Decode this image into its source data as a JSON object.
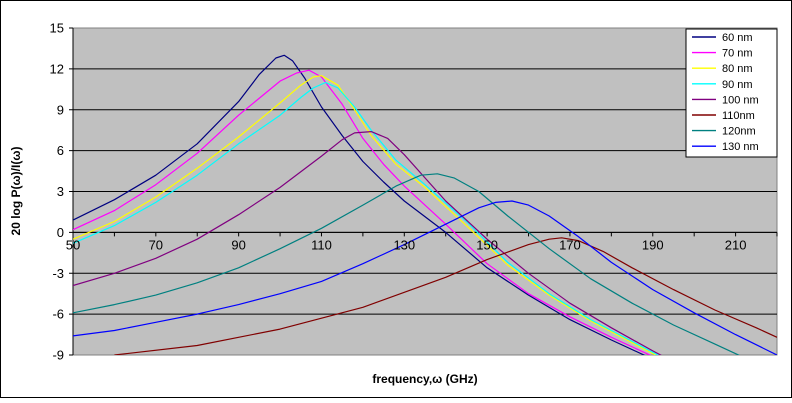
{
  "chart_data": {
    "type": "line",
    "title": "",
    "xlabel": "frequency,ω (GHz)",
    "ylabel": "20 log P(ω)/I(ω)",
    "xlim": [
      50,
      220
    ],
    "ylim": [
      -9,
      15
    ],
    "x_ticks": [
      "50",
      "70",
      "90",
      "110",
      "130",
      "150",
      "170",
      "190",
      "210"
    ],
    "y_ticks": [
      "15",
      "12",
      "9",
      "6",
      "3",
      "0",
      "-3",
      "-6",
      "-9"
    ],
    "grid": "horizontal",
    "plot_background": "#c0c0c0",
    "legend_position": "top-right",
    "series": [
      {
        "name": "60 nm",
        "color": "#000080",
        "x": [
          50,
          60,
          70,
          80,
          90,
          95,
          99,
          101,
          103,
          106,
          110,
          115,
          120,
          125,
          130,
          140,
          150,
          160,
          170,
          180,
          190,
          194
        ],
        "y": [
          0.9,
          2.4,
          4.2,
          6.5,
          9.6,
          11.6,
          12.8,
          13.0,
          12.6,
          11.3,
          9.2,
          7.1,
          5.2,
          3.7,
          2.3,
          0.0,
          -2.6,
          -4.6,
          -6.4,
          -7.9,
          -9.3,
          -9.8
        ]
      },
      {
        "name": "70 nm",
        "color": "#ff00ff",
        "x": [
          50,
          60,
          70,
          80,
          90,
          100,
          104,
          107,
          110,
          115,
          120,
          125,
          130,
          140,
          150,
          160,
          170,
          180,
          190,
          195
        ],
        "y": [
          0.2,
          1.6,
          3.5,
          5.8,
          8.6,
          11.1,
          11.7,
          11.9,
          11.4,
          9.4,
          6.9,
          5.0,
          3.4,
          0.6,
          -2.3,
          -4.5,
          -6.2,
          -7.7,
          -9.1,
          -9.7
        ]
      },
      {
        "name": "80 nm",
        "color": "#ffff00",
        "x": [
          50,
          60,
          70,
          80,
          90,
          100,
          105,
          108,
          110,
          114,
          118,
          122,
          128,
          135,
          145,
          155,
          165,
          175,
          185,
          195
        ],
        "y": [
          -0.5,
          0.8,
          2.6,
          4.7,
          7.0,
          9.5,
          10.8,
          11.4,
          11.5,
          10.8,
          9.0,
          7.1,
          5.0,
          3.3,
          0.5,
          -2.4,
          -4.6,
          -6.5,
          -8.1,
          -9.7
        ]
      },
      {
        "name": "90 nm",
        "color": "#00ffff",
        "x": [
          50,
          60,
          70,
          80,
          90,
          100,
          105,
          108,
          111,
          114,
          118,
          122,
          128,
          135,
          145,
          155,
          165,
          175,
          185,
          195
        ],
        "y": [
          -0.8,
          0.5,
          2.2,
          4.2,
          6.5,
          8.6,
          9.9,
          10.6,
          11.0,
          10.6,
          9.2,
          7.5,
          5.3,
          3.5,
          0.8,
          -2.2,
          -4.5,
          -6.4,
          -8.0,
          -9.6
        ]
      },
      {
        "name": "100 nm",
        "color": "#800080",
        "x": [
          50,
          60,
          70,
          80,
          90,
          100,
          110,
          115,
          118,
          122,
          126,
          130,
          135,
          140,
          150,
          160,
          170,
          180,
          190,
          195
        ],
        "y": [
          -3.9,
          -3.0,
          -1.9,
          -0.5,
          1.3,
          3.3,
          5.6,
          6.8,
          7.3,
          7.4,
          6.9,
          5.7,
          4.0,
          2.3,
          -0.5,
          -3.0,
          -5.2,
          -7.0,
          -8.7,
          -9.5
        ]
      },
      {
        "name": "110nm",
        "color": "#800000",
        "x": [
          60,
          80,
          100,
          120,
          140,
          150,
          160,
          165,
          168,
          172,
          178,
          185,
          195,
          205,
          215,
          220
        ],
        "y": [
          -9.0,
          -8.3,
          -7.1,
          -5.5,
          -3.3,
          -2.0,
          -0.9,
          -0.5,
          -0.4,
          -0.6,
          -1.4,
          -2.6,
          -4.2,
          -5.7,
          -7.0,
          -7.7
        ]
      },
      {
        "name": "120nm",
        "color": "#008080",
        "x": [
          50,
          60,
          70,
          80,
          90,
          100,
          110,
          120,
          128,
          134,
          138,
          142,
          148,
          155,
          165,
          175,
          185,
          195,
          205,
          215,
          220
        ],
        "y": [
          -5.9,
          -5.3,
          -4.6,
          -3.7,
          -2.6,
          -1.2,
          0.3,
          2.0,
          3.4,
          4.2,
          4.3,
          4.0,
          3.0,
          1.2,
          -1.2,
          -3.4,
          -5.2,
          -6.8,
          -8.2,
          -9.6,
          -10.2
        ]
      },
      {
        "name": "130 nm",
        "color": "#0000ff",
        "x": [
          50,
          60,
          70,
          80,
          90,
          100,
          110,
          120,
          130,
          140,
          148,
          152,
          156,
          160,
          165,
          172,
          180,
          190,
          200,
          210,
          220
        ],
        "y": [
          -7.6,
          -7.2,
          -6.6,
          -6.0,
          -5.3,
          -4.5,
          -3.6,
          -2.3,
          -0.9,
          0.6,
          1.8,
          2.2,
          2.3,
          2.0,
          1.2,
          -0.3,
          -2.2,
          -4.2,
          -5.9,
          -7.5,
          -9.0
        ]
      }
    ]
  }
}
